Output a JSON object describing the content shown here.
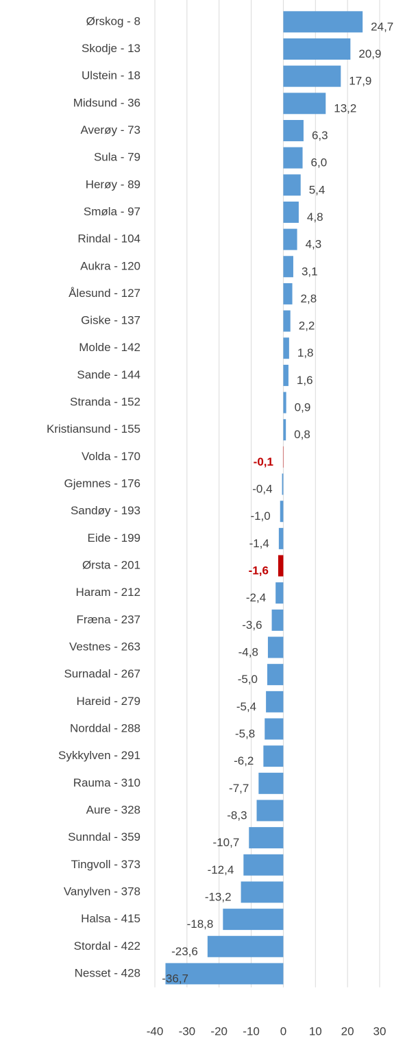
{
  "chart_data": {
    "type": "barh",
    "categories": [
      "Ørskog - 8",
      "Skodje - 13",
      "Ulstein - 18",
      "Midsund - 36",
      "Averøy - 73",
      "Sula - 79",
      "Herøy - 89",
      "Smøla - 97",
      "Rindal - 104",
      "Aukra - 120",
      "Ålesund - 127",
      "Giske - 137",
      "Molde - 142",
      "Sande - 144",
      "Stranda - 152",
      "Kristiansund - 155",
      "Volda - 170",
      "Gjemnes - 176",
      "Sandøy - 193",
      "Eide - 199",
      "Ørsta - 201",
      "Haram - 212",
      "Fræna - 237",
      "Vestnes - 263",
      "Surnadal - 267",
      "Hareid - 279",
      "Norddal - 288",
      "Sykkylven - 291",
      "Rauma - 310",
      "Aure - 328",
      "Sunndal - 359",
      "Tingvoll - 373",
      "Vanylven - 378",
      "Halsa - 415",
      "Stordal - 422",
      "Nesset - 428"
    ],
    "values": [
      24.7,
      20.9,
      17.9,
      13.2,
      6.3,
      6.0,
      5.4,
      4.8,
      4.3,
      3.1,
      2.8,
      2.2,
      1.8,
      1.6,
      0.9,
      0.8,
      -0.1,
      -0.4,
      -1.0,
      -1.4,
      -1.6,
      -2.4,
      -3.6,
      -4.8,
      -5.0,
      -5.4,
      -5.8,
      -6.2,
      -7.7,
      -8.3,
      -10.7,
      -12.4,
      -13.2,
      -18.8,
      -23.6,
      -36.7
    ],
    "value_labels": [
      "24,7",
      "20,9",
      "17,9",
      "13,2",
      "6,3",
      "6,0",
      "5,4",
      "4,8",
      "4,3",
      "3,1",
      "2,8",
      "2,2",
      "1,8",
      "1,6",
      "0,9",
      "0,8",
      "-0,1",
      "-0,4",
      "-1,0",
      "-1,4",
      "-1,6",
      "-2,4",
      "-3,6",
      "-4,8",
      "-5,0",
      "-5,4",
      "-5,8",
      "-6,2",
      "-7,7",
      "-8,3",
      "-10,7",
      "-12,4",
      "-13,2",
      "-18,8",
      "-23,6",
      "-36,7"
    ],
    "color": "#5b9bd5",
    "colors": [
      "#5b9bd5",
      "#5b9bd5",
      "#5b9bd5",
      "#5b9bd5",
      "#5b9bd5",
      "#5b9bd5",
      "#5b9bd5",
      "#5b9bd5",
      "#5b9bd5",
      "#5b9bd5",
      "#5b9bd5",
      "#5b9bd5",
      "#5b9bd5",
      "#5b9bd5",
      "#5b9bd5",
      "#5b9bd5",
      "#c00000",
      "#5b9bd5",
      "#5b9bd5",
      "#5b9bd5",
      "#c00000",
      "#5b9bd5",
      "#5b9bd5",
      "#5b9bd5",
      "#5b9bd5",
      "#5b9bd5",
      "#5b9bd5",
      "#5b9bd5",
      "#5b9bd5",
      "#5b9bd5",
      "#5b9bd5",
      "#5b9bd5",
      "#5b9bd5",
      "#5b9bd5",
      "#5b9bd5",
      "#5b9bd5"
    ],
    "xlim": [
      -40,
      30
    ],
    "xticks": [
      -40,
      -30,
      -20,
      -10,
      0,
      10,
      20,
      30
    ],
    "grid": true
  }
}
